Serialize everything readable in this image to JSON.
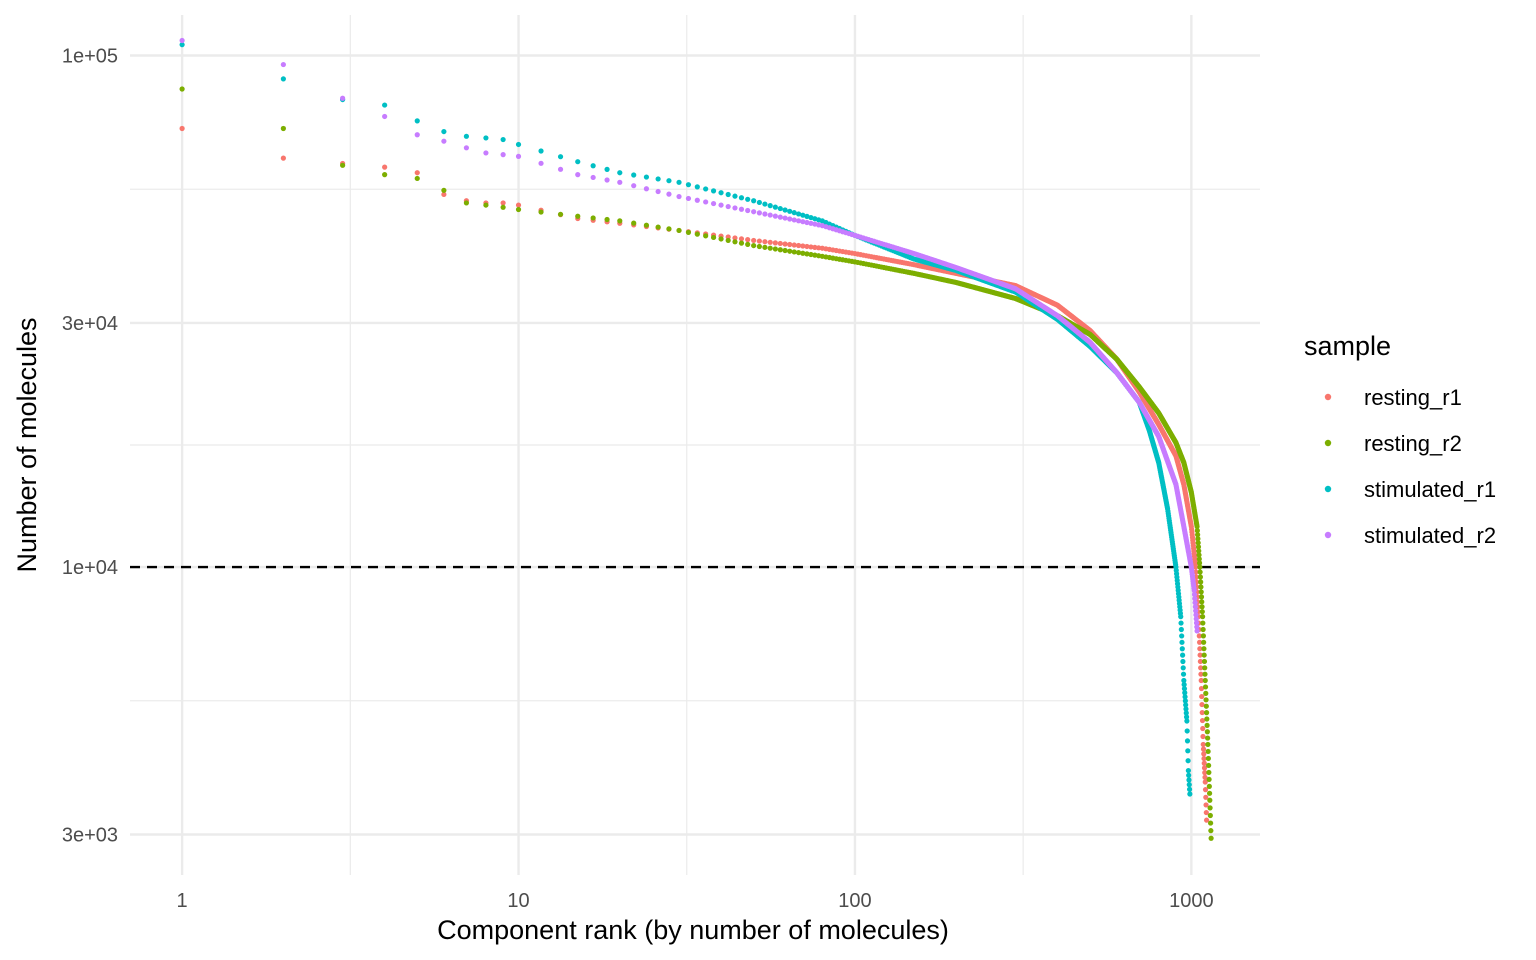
{
  "chart_data": {
    "type": "scatter",
    "title": "",
    "xlabel": "Component rank (by number of molecules)",
    "ylabel": "Number of molecules",
    "x_scale": "log10",
    "y_scale": "log10",
    "xlim": [
      0.7,
      1600
    ],
    "ylim": [
      2500,
      120000
    ],
    "x_ticks": [
      {
        "value": 1,
        "label": "1"
      },
      {
        "value": 10,
        "label": "10"
      },
      {
        "value": 100,
        "label": "100"
      },
      {
        "value": 1000,
        "label": "1000"
      }
    ],
    "y_ticks": [
      {
        "value": 3000,
        "label": "3e+03"
      },
      {
        "value": 10000,
        "label": "1e+04"
      },
      {
        "value": 30000,
        "label": "3e+04"
      },
      {
        "value": 100000,
        "label": "1e+05"
      }
    ],
    "threshold_line": {
      "y": 10000,
      "style": "dashed",
      "color": "#000000"
    },
    "grid": true,
    "legend": {
      "title": "sample",
      "position": "right"
    },
    "series": [
      {
        "name": "resting_r1",
        "color": "#F8766D",
        "points": [
          [
            1,
            72000
          ],
          [
            2,
            63000
          ],
          [
            3,
            61500
          ],
          [
            4,
            60500
          ],
          [
            5,
            59000
          ],
          [
            6,
            53500
          ],
          [
            7,
            52000
          ],
          [
            8,
            51500
          ],
          [
            9,
            51500
          ],
          [
            10,
            51000
          ],
          [
            15,
            48000
          ],
          [
            20,
            47000
          ],
          [
            30,
            45500
          ],
          [
            50,
            43500
          ],
          [
            80,
            42000
          ],
          [
            100,
            41000
          ],
          [
            150,
            39000
          ],
          [
            200,
            37500
          ],
          [
            300,
            35500
          ],
          [
            400,
            32500
          ],
          [
            500,
            29000
          ],
          [
            600,
            25500
          ],
          [
            700,
            22000
          ],
          [
            800,
            19000
          ],
          [
            900,
            16500
          ],
          [
            950,
            14500
          ],
          [
            1000,
            12000
          ],
          [
            1030,
            10000
          ],
          [
            1050,
            8000
          ],
          [
            1070,
            6000
          ],
          [
            1085,
            4500
          ],
          [
            1100,
            3800
          ],
          [
            1110,
            3200
          ]
        ]
      },
      {
        "name": "resting_r2",
        "color": "#7CAE00",
        "points": [
          [
            1,
            86000
          ],
          [
            2,
            72000
          ],
          [
            3,
            61000
          ],
          [
            4,
            58500
          ],
          [
            5,
            57500
          ],
          [
            6,
            54500
          ],
          [
            7,
            51500
          ],
          [
            8,
            51000
          ],
          [
            9,
            50500
          ],
          [
            10,
            50000
          ],
          [
            15,
            48500
          ],
          [
            20,
            47500
          ],
          [
            30,
            45500
          ],
          [
            50,
            42500
          ],
          [
            80,
            40500
          ],
          [
            100,
            39500
          ],
          [
            150,
            37500
          ],
          [
            200,
            36000
          ],
          [
            300,
            33500
          ],
          [
            400,
            31000
          ],
          [
            500,
            28500
          ],
          [
            600,
            25500
          ],
          [
            700,
            22500
          ],
          [
            800,
            20000
          ],
          [
            900,
            17500
          ],
          [
            950,
            16000
          ],
          [
            1000,
            14000
          ],
          [
            1040,
            12000
          ],
          [
            1060,
            10000
          ],
          [
            1080,
            8000
          ],
          [
            1100,
            6000
          ],
          [
            1120,
            4500
          ],
          [
            1135,
            3500
          ],
          [
            1145,
            2950
          ]
        ]
      },
      {
        "name": "stimulated_r1",
        "color": "#00BFC4",
        "points": [
          [
            1,
            105000
          ],
          [
            2,
            90000
          ],
          [
            3,
            82000
          ],
          [
            4,
            80000
          ],
          [
            5,
            74500
          ],
          [
            6,
            71000
          ],
          [
            7,
            69500
          ],
          [
            8,
            69000
          ],
          [
            9,
            68500
          ],
          [
            10,
            67000
          ],
          [
            15,
            62000
          ],
          [
            20,
            59000
          ],
          [
            30,
            56500
          ],
          [
            50,
            52000
          ],
          [
            80,
            47500
          ],
          [
            100,
            44500
          ],
          [
            150,
            40000
          ],
          [
            200,
            38000
          ],
          [
            300,
            34500
          ],
          [
            400,
            30500
          ],
          [
            500,
            27000
          ],
          [
            600,
            24000
          ],
          [
            700,
            21000
          ],
          [
            750,
            18500
          ],
          [
            800,
            16000
          ],
          [
            850,
            13000
          ],
          [
            900,
            10000
          ],
          [
            930,
            8000
          ],
          [
            950,
            6000
          ],
          [
            970,
            5000
          ],
          [
            980,
            4000
          ],
          [
            990,
            3600
          ]
        ]
      },
      {
        "name": "stimulated_r2",
        "color": "#C77CFF",
        "points": [
          [
            1,
            107000
          ],
          [
            2,
            96000
          ],
          [
            3,
            82500
          ],
          [
            4,
            76000
          ],
          [
            5,
            70000
          ],
          [
            6,
            68000
          ],
          [
            7,
            66000
          ],
          [
            8,
            64500
          ],
          [
            9,
            64000
          ],
          [
            10,
            63500
          ],
          [
            15,
            58500
          ],
          [
            20,
            56500
          ],
          [
            30,
            53000
          ],
          [
            50,
            49500
          ],
          [
            80,
            46500
          ],
          [
            100,
            44500
          ],
          [
            150,
            41000
          ],
          [
            200,
            38500
          ],
          [
            300,
            35000
          ],
          [
            400,
            31000
          ],
          [
            500,
            27500
          ],
          [
            600,
            24000
          ],
          [
            700,
            21000
          ],
          [
            800,
            18000
          ],
          [
            900,
            14500
          ],
          [
            950,
            12000
          ],
          [
            1000,
            10000
          ],
          [
            1020,
            9000
          ],
          [
            1040,
            7500
          ]
        ]
      }
    ]
  }
}
